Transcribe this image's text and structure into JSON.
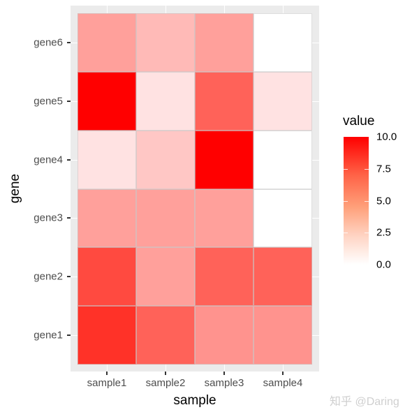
{
  "chart_data": {
    "type": "heatmap",
    "title": "",
    "xlabel": "sample",
    "ylabel": "gene",
    "x_categories": [
      "sample1",
      "sample2",
      "sample3",
      "sample4"
    ],
    "y_categories": [
      "gene1",
      "gene2",
      "gene3",
      "gene4",
      "gene5",
      "gene6"
    ],
    "values": {
      "gene6": [
        3.5,
        2.5,
        3.5,
        0
      ],
      "gene5": [
        10,
        1,
        6,
        1
      ],
      "gene4": [
        1,
        2,
        10,
        0
      ],
      "gene3": [
        3.5,
        3.5,
        3.5,
        0
      ],
      "gene2": [
        7,
        3.5,
        6,
        6
      ],
      "gene1": [
        8,
        6,
        4,
        4
      ]
    },
    "color_scale": {
      "low": "#ffffff",
      "high": "#ff0000",
      "limits": [
        0,
        10
      ]
    },
    "legend": {
      "title": "value",
      "position": "right",
      "ticks": [
        "10.0",
        "7.5",
        "5.0",
        "2.5",
        "0.0"
      ]
    },
    "grid": true
  },
  "axes": {
    "x_title": "sample",
    "y_title": "gene",
    "x_ticks": [
      "sample1",
      "sample2",
      "sample3",
      "sample4"
    ],
    "y_ticks_top_to_bottom": [
      "gene6",
      "gene5",
      "gene4",
      "gene3",
      "gene2",
      "gene1"
    ]
  },
  "legend": {
    "title": "value",
    "labels": [
      "10.0",
      "7.5",
      "5.0",
      "2.5",
      "0.0"
    ]
  },
  "watermark": "知乎 @Daring"
}
